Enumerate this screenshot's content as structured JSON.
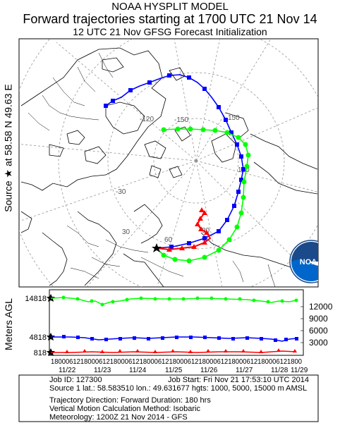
{
  "header": {
    "line1": "NOAA HYSPLIT MODEL",
    "line2": "Forward trajectories starting at 1700 UTC 21 Nov 14",
    "line3": "12 UTC 21 Nov     GFSG  Forecast Initialization"
  },
  "source_label": "Source ★ at     58.58 N     49.63 E",
  "map": {
    "longitude_labels": [
      "-120",
      "-150",
      "150",
      "120",
      "-30",
      "30",
      "60",
      "90"
    ],
    "colors": {
      "red": "#ff0000",
      "blue": "#0000ff",
      "green": "#00ff00",
      "map": "#000000",
      "grid": "#888888"
    }
  },
  "height_panel": {
    "axis_label": "Meters AGL",
    "left_ticks": [
      "14818",
      "4818",
      "818"
    ],
    "right_ticks": [
      "12000",
      "9000",
      "6000",
      "3000"
    ],
    "time_ticks": "18000612180006121800061218000612180006121800061218000612180006121800",
    "date_labels": [
      "11/22",
      "11/23",
      "11/24",
      "11/25",
      "11/26",
      "11/27",
      "11/28",
      "11/29"
    ]
  },
  "info": {
    "job_id": "Job ID: 127300",
    "job_start": "Job Start: Fri Nov 21 17:53:10 UTC 2014",
    "source": "Source 1 lat.: 58.583510  lon.: 49.631677  hgts: 1000, 5000, 15000 m AMSL",
    "direction": "Trajectory Direction: Forward      Duration: 180 hrs",
    "vertical": "Vertical Motion Calculation Method:        Isobaric",
    "meteorology": "Meteorology: 1200Z 21 Nov 2014 - GFS"
  },
  "logo": {
    "text": "NOAA"
  }
}
